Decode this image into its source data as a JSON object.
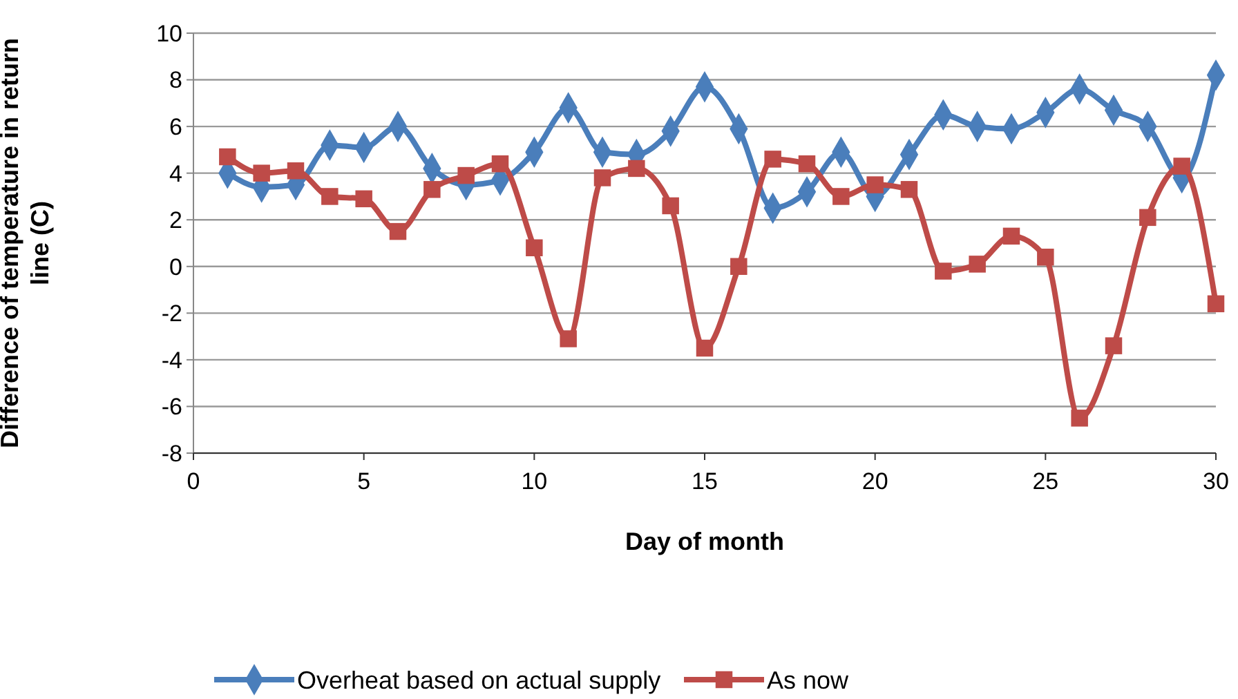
{
  "chart_data": {
    "type": "line",
    "xlabel": "Day of month",
    "ylabel": "Difference of temperature in return line (C)",
    "x": [
      1,
      2,
      3,
      4,
      5,
      6,
      7,
      8,
      9,
      10,
      11,
      12,
      13,
      14,
      15,
      16,
      17,
      18,
      19,
      20,
      21,
      22,
      23,
      24,
      25,
      26,
      27,
      28,
      29,
      30
    ],
    "xlim": [
      0,
      30
    ],
    "xticks": [
      0,
      5,
      10,
      15,
      20,
      25,
      30
    ],
    "ylim": [
      -8,
      10
    ],
    "yticks": [
      -8,
      -6,
      -4,
      -2,
      0,
      2,
      4,
      6,
      8,
      10
    ],
    "grid": "y",
    "legend": "bottom",
    "series": [
      {
        "name": "Overheat based on actual supply",
        "color": "#4a7ebb",
        "marker": "diamond",
        "values": [
          4.0,
          3.4,
          3.5,
          5.2,
          5.1,
          6.0,
          4.2,
          3.5,
          3.7,
          4.9,
          6.8,
          4.9,
          4.8,
          5.8,
          7.7,
          5.9,
          2.5,
          3.2,
          4.9,
          3.0,
          4.8,
          6.5,
          6.0,
          5.9,
          6.6,
          7.6,
          6.7,
          6.0,
          3.8,
          8.2
        ]
      },
      {
        "name": "As now",
        "color": "#be4b48",
        "marker": "square",
        "values": [
          4.7,
          4.0,
          4.1,
          3.0,
          2.9,
          1.5,
          3.3,
          3.9,
          4.4,
          0.8,
          -3.1,
          3.8,
          4.2,
          2.6,
          -3.5,
          0.0,
          4.6,
          4.4,
          3.0,
          3.5,
          3.3,
          -0.2,
          0.1,
          1.3,
          0.4,
          -6.5,
          -3.4,
          2.1,
          4.3,
          -1.6
        ]
      }
    ]
  }
}
